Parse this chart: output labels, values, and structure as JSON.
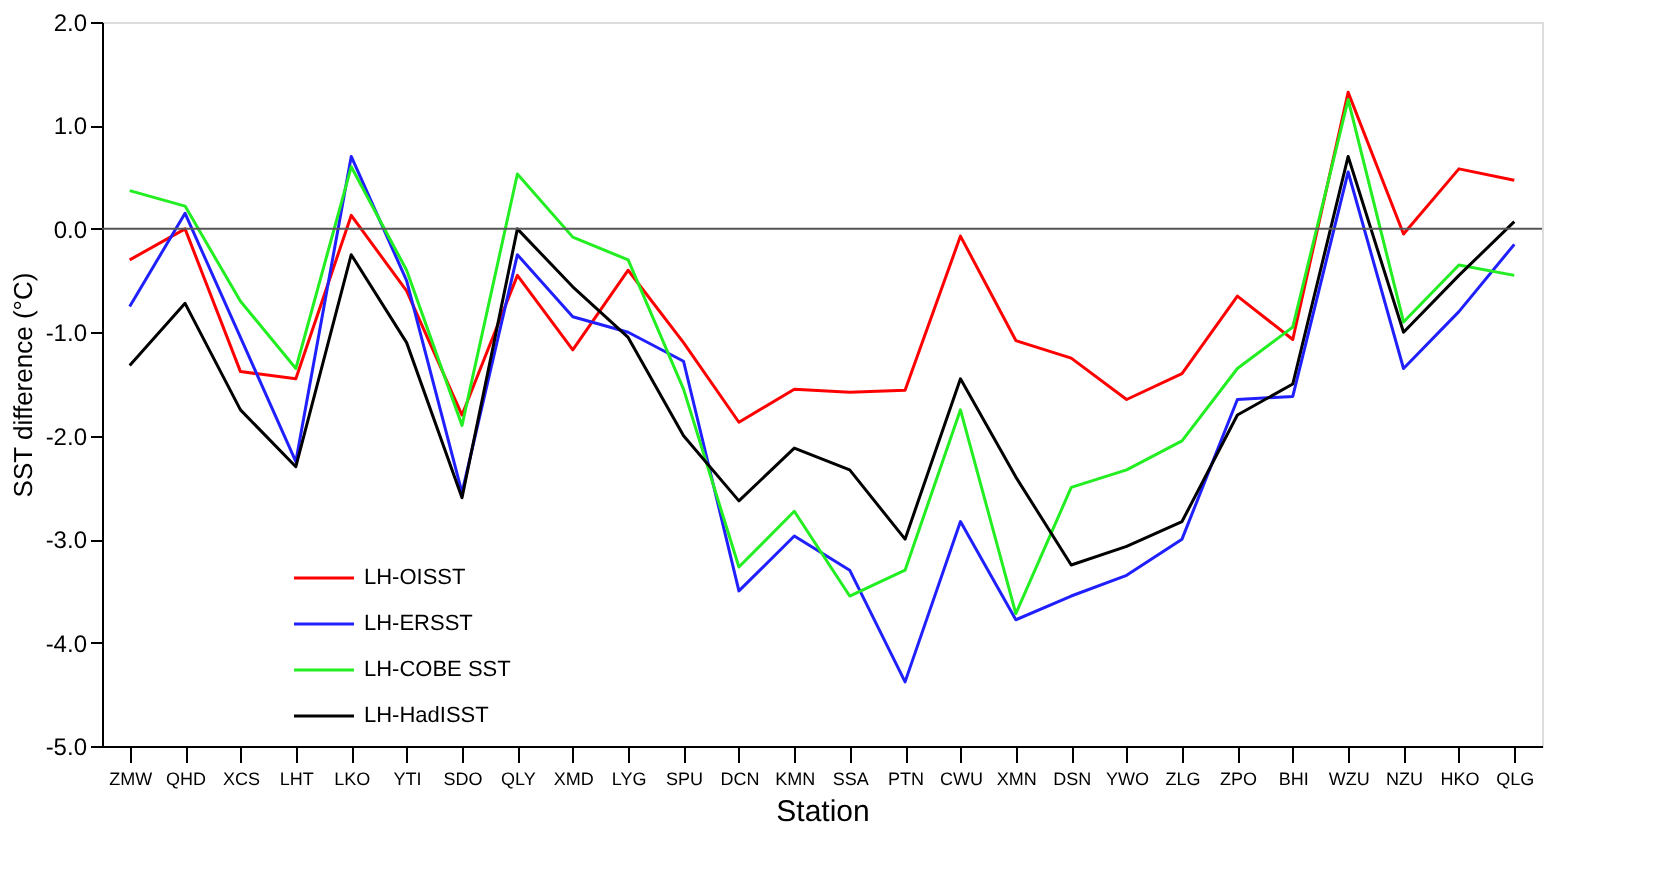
{
  "chart_data": {
    "type": "line",
    "xlabel": "Station",
    "ylabel": "SST difference (°C)",
    "categories": [
      "ZMW",
      "QHD",
      "XCS",
      "LHT",
      "LKO",
      "YTI",
      "SDO",
      "QLY",
      "XMD",
      "LYG",
      "SPU",
      "DCN",
      "KMN",
      "SSA",
      "PTN",
      "CWU",
      "XMN",
      "DSN",
      "YWO",
      "ZLG",
      "ZPO",
      "BHI",
      "WZU",
      "NZU",
      "HKO",
      "QLG"
    ],
    "series": [
      {
        "name": "LH-OISST",
        "color": "#ff0000",
        "values": [
          -0.3,
          0.0,
          -1.38,
          -1.45,
          0.13,
          -0.6,
          -1.8,
          -0.45,
          -1.17,
          -0.4,
          -1.1,
          -1.87,
          -1.55,
          -1.58,
          -1.56,
          -0.07,
          -1.08,
          -1.25,
          -1.65,
          -1.4,
          -0.65,
          -1.07,
          1.32,
          -0.05,
          0.58,
          0.47
        ]
      },
      {
        "name": "LH-ERSST",
        "color": "#2020ff",
        "values": [
          -0.75,
          0.15,
          -1.05,
          -2.25,
          0.7,
          -0.5,
          -2.55,
          -0.25,
          -0.85,
          -1.0,
          -1.28,
          -3.5,
          -2.97,
          -3.3,
          -4.38,
          -2.83,
          -3.78,
          -3.55,
          -3.35,
          -3.0,
          -1.65,
          -1.62,
          0.55,
          -1.35,
          -0.8,
          -0.15
        ]
      },
      {
        "name": "LH-COBE SST",
        "color": "#22ee22",
        "values": [
          0.37,
          0.22,
          -0.7,
          -1.35,
          0.6,
          -0.4,
          -1.9,
          0.53,
          -0.08,
          -0.3,
          -1.55,
          -3.27,
          -2.73,
          -3.55,
          -3.3,
          -1.75,
          -3.72,
          -2.5,
          -2.33,
          -2.05,
          -1.35,
          -0.95,
          1.25,
          -0.9,
          -0.35,
          -0.45
        ]
      },
      {
        "name": "LH-HadISST",
        "color": "#000000",
        "values": [
          -1.32,
          -0.72,
          -1.75,
          -2.3,
          -0.25,
          -1.1,
          -2.6,
          0.0,
          -0.56,
          -1.05,
          -2.0,
          -2.63,
          -2.12,
          -2.33,
          -3.0,
          -1.45,
          -2.4,
          -3.25,
          -3.07,
          -2.83,
          -1.8,
          -1.5,
          0.7,
          -1.0,
          -0.45,
          0.07
        ]
      }
    ],
    "ylim": [
      -5,
      2
    ],
    "yticks": [
      {
        "value": -5,
        "label": "-5.0"
      },
      {
        "value": -4,
        "label": "-4.0"
      },
      {
        "value": -3,
        "label": "-3.0"
      },
      {
        "value": -2,
        "label": "-2.0"
      },
      {
        "value": -1,
        "label": "-1.0"
      },
      {
        "value": 0,
        "label": "0.0"
      },
      {
        "value": 1,
        "label": "1.0"
      },
      {
        "value": 2,
        "label": "2.0"
      }
    ],
    "ref_lines": [
      {
        "axis": "y",
        "value": 0,
        "color": "#555555"
      }
    ],
    "legend": "bottom left",
    "grid": false,
    "marker": "none",
    "line_style": "solid"
  }
}
